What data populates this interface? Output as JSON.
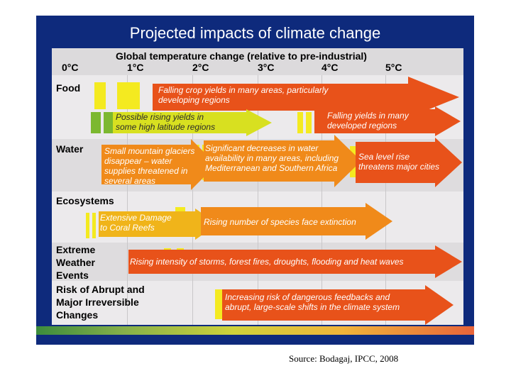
{
  "title": "Projected impacts of climate change",
  "header": {
    "title": "Global temperature change (relative to pre-industrial)",
    "ticks": [
      "0°C",
      "1°C",
      "2°C",
      "3°C",
      "4°C",
      "5°C"
    ]
  },
  "rows": [
    {
      "label": "Food"
    },
    {
      "label": "Water"
    },
    {
      "label": "Ecosystems"
    },
    {
      "label": "Extreme\nWeather\nEvents"
    },
    {
      "label": "Risk of Abrupt and\nMajor Irreversible\nChanges"
    }
  ],
  "impacts": [
    {
      "text": "Falling crop yields in many areas, particularly\ndeveloping regions",
      "color": "#e8521a"
    },
    {
      "text": "Possible rising yields in\nsome high latitude regions",
      "color": "#d8e020"
    },
    {
      "text": "Falling yields in many\ndeveloped regions",
      "color": "#e8521a"
    },
    {
      "text": "Small mountain glaciers\ndisappear  – water\nsupplies threatened in\nseveral areas",
      "color": "#f08a1a"
    },
    {
      "text": "Significant decreases in water\navailability in many areas, including\nMediterranean and Southern Africa",
      "color": "#f08a1a"
    },
    {
      "text": "Sea level rise\nthreatens major cities",
      "color": "#e8521a"
    },
    {
      "text": "Extensive Damage\nto Coral Reefs",
      "color": "#f0b41a"
    },
    {
      "text": "Rising number of species face extinction",
      "color": "#f08a1a"
    },
    {
      "text": "Rising intensity of storms, forest fires, droughts, flooding and heat waves",
      "color": "#e8521a"
    },
    {
      "text": "Increasing risk of dangerous feedbacks and\nabrupt, large-scale shifts in the climate system",
      "color": "#e8521a"
    }
  ],
  "source": "Source: Bodagaj, IPCC, 2008"
}
